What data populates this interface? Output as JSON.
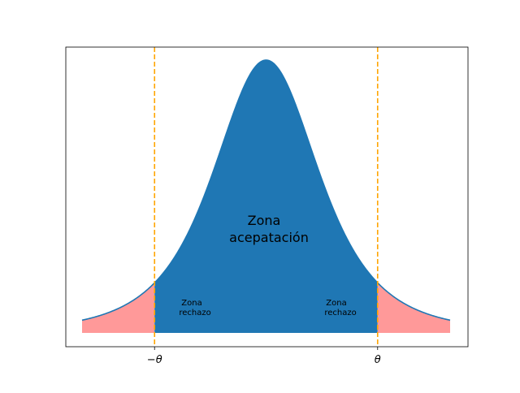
{
  "chart_data": {
    "type": "area",
    "curve": "t-like",
    "x_range": [
      -3.3,
      3.3
    ],
    "y_range": [
      0,
      1.0
    ],
    "peak_x": 0,
    "peak_y": 1.0,
    "curve_color": "#1f77b4",
    "critical_values": [
      -2.0,
      2.0
    ],
    "tick_labels": [
      "−θ",
      "θ"
    ],
    "threshold_line_color": "#ffa500",
    "regions": [
      {
        "name": "rechazo-left",
        "from": -3.3,
        "to": -2.0,
        "fill": "#ff9999"
      },
      {
        "name": "aceptacion",
        "from": -2.0,
        "to": 2.0,
        "fill": "#1f77b4"
      },
      {
        "name": "rechazo-right",
        "from": 2.0,
        "to": 3.3,
        "fill": "#ff9999"
      }
    ],
    "annotations": {
      "acceptance_line1": "Zona",
      "acceptance_line2": "acepatación",
      "rejection_left_line1": "Zona",
      "rejection_left_line2": "rechazo",
      "rejection_right_line1": "Zona",
      "rejection_right_line2": "rechazo"
    }
  }
}
